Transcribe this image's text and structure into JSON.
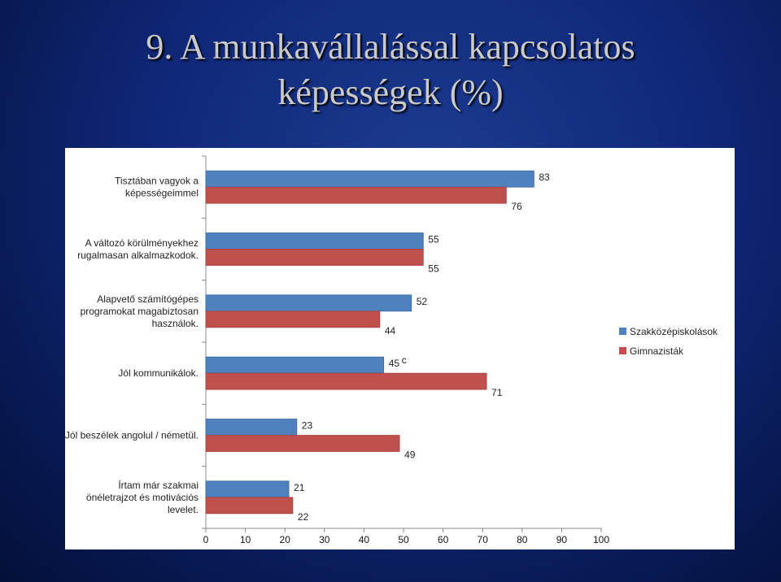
{
  "title": {
    "line1": "9. A munkavállalással kapcsolatos",
    "line2": "képességek (%)"
  },
  "chart_data": {
    "type": "bar",
    "orientation": "horizontal",
    "categories": [
      [
        "Tisztában vagyok a",
        "képességeimmel"
      ],
      [
        "A változó körülményekhez",
        "rugalmasan alkalmazkodok."
      ],
      [
        "Alapvető számítógépes",
        "programokat magabiztosan",
        "használok."
      ],
      [
        "Jól kommunikálok."
      ],
      [
        "Jól beszélek angolul / németül."
      ],
      [
        "Írtam már szakmai",
        "önéletrajzot és motivációs",
        "levelet."
      ]
    ],
    "series": [
      {
        "name": "Szakközépiskolások",
        "color": "#4f81bd",
        "values": [
          83,
          55,
          52,
          45,
          23,
          21
        ]
      },
      {
        "name": "Gimnazisták",
        "color": "#c0504d",
        "values": [
          76,
          55,
          44,
          71,
          49,
          22
        ]
      }
    ],
    "value_labels": [
      [
        "83",
        "76"
      ],
      [
        "55",
        "55"
      ],
      [
        "52",
        "44"
      ],
      [
        "45",
        "71"
      ],
      [
        "23",
        "49"
      ],
      [
        "21",
        "22"
      ]
    ],
    "stray_label": "c",
    "xlim": [
      0,
      100
    ],
    "xticks": [
      0,
      10,
      20,
      30,
      40,
      50,
      60,
      70,
      80,
      90,
      100
    ],
    "legend_position": "right",
    "grid": false
  }
}
